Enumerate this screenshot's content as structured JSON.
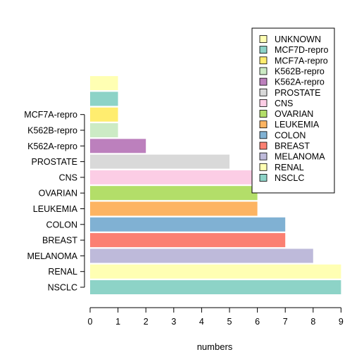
{
  "chart_data": {
    "type": "bar",
    "orientation": "horizontal",
    "categories": [
      "NSCLC",
      "RENAL",
      "MELANOMA",
      "BREAST",
      "COLON",
      "LEUKEMIA",
      "OVARIAN",
      "CNS",
      "PROSTATE",
      "K562A-repro",
      "K562B-repro",
      "MCF7A-repro",
      "MCF7D-repro",
      "UNKNOWN"
    ],
    "values": [
      9,
      9,
      8,
      7,
      7,
      6,
      6,
      6,
      5,
      2,
      1,
      1,
      1,
      1
    ],
    "colors": [
      "#8DD3C7",
      "#FFFFB3",
      "#BEBADA",
      "#FB8072",
      "#80B1D3",
      "#FDB462",
      "#B3DE69",
      "#FCCDE5",
      "#D9D9D9",
      "#BC80BD",
      "#CCEBC5",
      "#FFED6F",
      "#8DD3C7",
      "#FFFFB3"
    ],
    "xlabel": "numbers",
    "ylabel": "",
    "title": "",
    "xlim": [
      0,
      9
    ],
    "xticks": [
      "0",
      "1",
      "2",
      "3",
      "4",
      "5",
      "6",
      "7",
      "8",
      "9"
    ],
    "grid": false,
    "legend": {
      "position": "top-right",
      "entries": [
        {
          "label": "UNKNOWN",
          "color": "#FFFFB3"
        },
        {
          "label": "MCF7D-repro",
          "color": "#8DD3C7"
        },
        {
          "label": "MCF7A-repro",
          "color": "#FFED6F"
        },
        {
          "label": "K562B-repro",
          "color": "#CCEBC5"
        },
        {
          "label": "K562A-repro",
          "color": "#BC80BD"
        },
        {
          "label": "PROSTATE",
          "color": "#D9D9D9"
        },
        {
          "label": "CNS",
          "color": "#FCCDE5"
        },
        {
          "label": "OVARIAN",
          "color": "#B3DE69"
        },
        {
          "label": "LEUKEMIA",
          "color": "#FDB462"
        },
        {
          "label": "COLON",
          "color": "#80B1D3"
        },
        {
          "label": "BREAST",
          "color": "#FB8072"
        },
        {
          "label": "MELANOMA",
          "color": "#BEBADA"
        },
        {
          "label": "RENAL",
          "color": "#FFFFB3"
        },
        {
          "label": "NSCLC",
          "color": "#8DD3C7"
        }
      ]
    }
  }
}
